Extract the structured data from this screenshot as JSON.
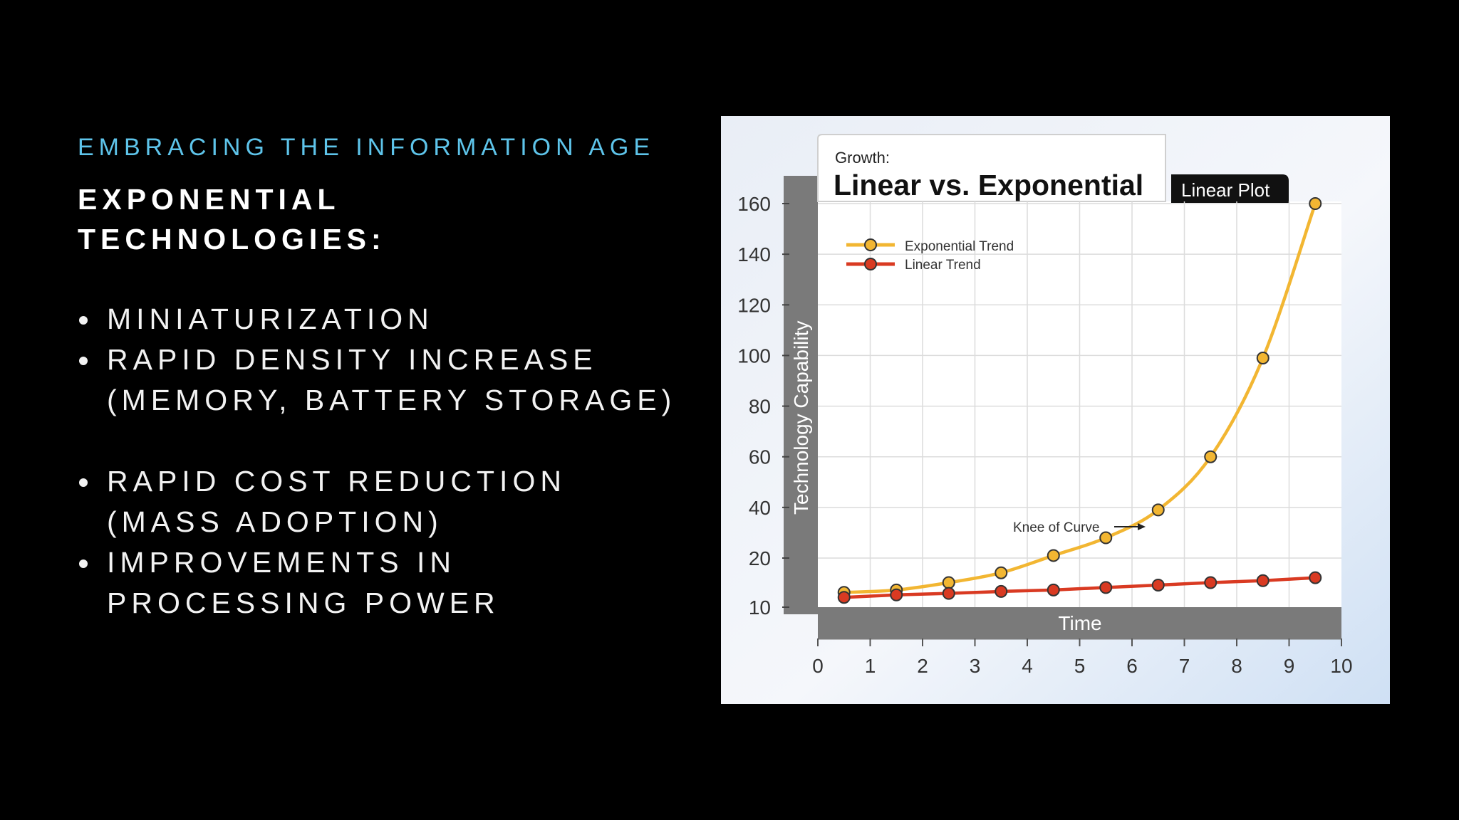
{
  "slide": {
    "kicker": "EMBRACING THE INFORMATION AGE",
    "title_line1": "EXPONENTIAL",
    "title_line2": "TECHNOLOGIES:",
    "bullets": [
      {
        "line1": "MINIATURIZATION",
        "line2": ""
      },
      {
        "line1": "RAPID DENSITY INCREASE",
        "line2": "(MEMORY, BATTERY STORAGE)"
      },
      {
        "line1": "RAPID COST REDUCTION",
        "line2": "(MASS ADOPTION)"
      },
      {
        "line1": "IMPROVEMENTS IN",
        "line2": "PROCESSING POWER"
      }
    ]
  },
  "colors": {
    "background": "#000000",
    "kicker": "#5ec4ea",
    "exponential": "#f2b632",
    "linear": "#d93a22",
    "axis_band": "#7a7a7a"
  },
  "chart_data": {
    "type": "line",
    "supertitle": "Growth:",
    "title": "Linear vs. Exponential",
    "badge": "Linear Plot",
    "xlabel": "Time",
    "ylabel": "Technology Capability",
    "xlim": [
      0,
      10
    ],
    "ylim": [
      10,
      160
    ],
    "xticks": [
      "0",
      "1",
      "2",
      "3",
      "4",
      "5",
      "6",
      "7",
      "8",
      "9",
      "10"
    ],
    "yticks": [
      "160",
      "140",
      "120",
      "100",
      "80",
      "60",
      "40",
      "20",
      "10"
    ],
    "grid": true,
    "legend": "top-left",
    "annotation": "Knee of Curve",
    "annotation_x": 6.5,
    "series": [
      {
        "name": "Exponential Trend",
        "color": "#f2b632",
        "x": [
          0.5,
          1.5,
          2.5,
          3.5,
          4.5,
          5.5,
          6.5,
          7.5,
          8.5,
          9.5
        ],
        "values": [
          13,
          13.5,
          15,
          17,
          21,
          28,
          39,
          60,
          99,
          160
        ]
      },
      {
        "name": "Linear Trend",
        "color": "#d93a22",
        "x": [
          0.5,
          1.5,
          2.5,
          3.5,
          4.5,
          5.5,
          6.5,
          7.5,
          8.5,
          9.5
        ],
        "values": [
          12,
          12.5,
          12.8,
          13.2,
          13.5,
          14,
          14.5,
          15,
          15.4,
          16
        ]
      }
    ]
  }
}
